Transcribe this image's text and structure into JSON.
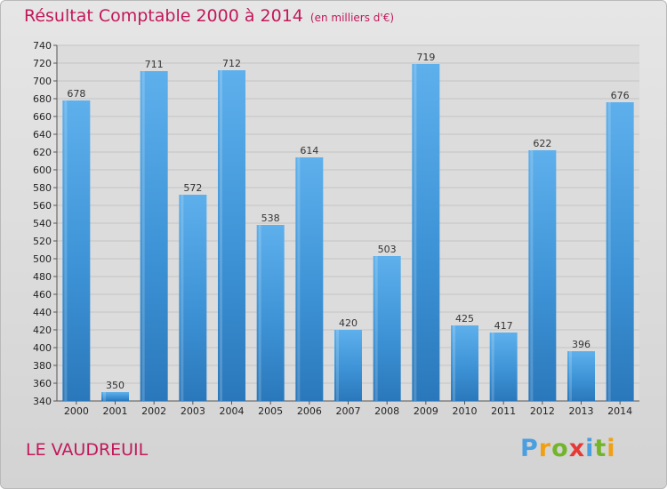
{
  "header": {
    "title": "Résultat Comptable 2000 à 2014",
    "unit_note": "(en milliers d'€)"
  },
  "footer": {
    "commune": "LE VAUDREUIL",
    "logo": {
      "letters": [
        "P",
        "r",
        "o",
        "x",
        "i",
        "t",
        "i"
      ],
      "colors": [
        "#4a9fe0",
        "#f0a012",
        "#73b52a",
        "#e53935",
        "#4a9fe0",
        "#73b52a",
        "#f0a012"
      ]
    }
  },
  "chart_data": {
    "type": "bar",
    "title": "Résultat Comptable 2000 à 2014",
    "subtitle": "(en milliers d'€)",
    "categories": [
      "2000",
      "2001",
      "2002",
      "2003",
      "2004",
      "2005",
      "2006",
      "2007",
      "2008",
      "2009",
      "2010",
      "2011",
      "2012",
      "2013",
      "2014"
    ],
    "values": [
      678,
      350,
      711,
      572,
      712,
      538,
      614,
      420,
      503,
      719,
      425,
      417,
      622,
      396,
      676
    ],
    "ylim": [
      340,
      740
    ],
    "yticks": [
      340,
      360,
      380,
      400,
      420,
      440,
      460,
      480,
      500,
      520,
      540,
      560,
      580,
      600,
      620,
      640,
      660,
      680,
      700,
      720,
      740
    ],
    "grid": true,
    "legend": "none",
    "bar_color": "#3d93d6",
    "bar_color_light": "#5eb0ec",
    "bar_color_dark": "#2a78bb"
  }
}
